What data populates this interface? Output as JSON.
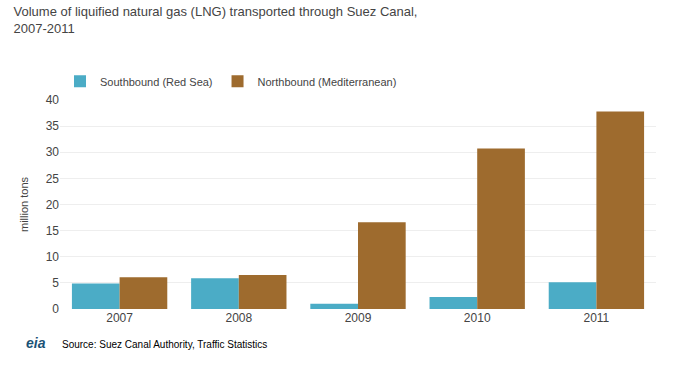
{
  "chart_data": {
    "type": "bar",
    "title": "Volume of liquified natural gas (LNG) transported through Suez Canal,",
    "subtitle": "2007-2011",
    "y_label": "million tons",
    "categories": [
      "2007",
      "2008",
      "2009",
      "2010",
      "2011"
    ],
    "series": [
      {
        "name": "Southbound (Red Sea)",
        "color": "#4bacc6",
        "values": [
          4.9,
          5.9,
          1.0,
          2.3,
          5.1
        ]
      },
      {
        "name": "Northbound (Mediterranean)",
        "color": "#9e6b2e",
        "values": [
          6.1,
          6.5,
          16.6,
          30.7,
          37.8
        ]
      }
    ],
    "ylim": [
      0,
      40
    ],
    "yticks": [
      0,
      5,
      10,
      15,
      20,
      25,
      30,
      35,
      40
    ],
    "grid": true,
    "legend": "upper left",
    "annotations": [
      "Source: Suez Canal Authority, Traffic Statistics",
      "eia"
    ]
  }
}
